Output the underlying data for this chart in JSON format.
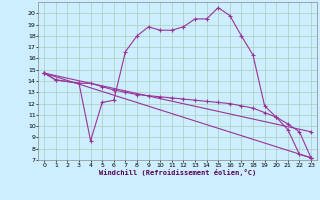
{
  "xlabel": "Windchill (Refroidissement éolien,°C)",
  "bg_color": "#cceeff",
  "grid_color": "#aaccbb",
  "line_color": "#993399",
  "xlim": [
    -0.5,
    23.5
  ],
  "ylim": [
    7,
    21
  ],
  "yticks": [
    7,
    8,
    9,
    10,
    11,
    12,
    13,
    14,
    15,
    16,
    17,
    18,
    19,
    20
  ],
  "xticks": [
    0,
    1,
    2,
    3,
    4,
    5,
    6,
    7,
    8,
    9,
    10,
    11,
    12,
    13,
    14,
    15,
    16,
    17,
    18,
    19,
    20,
    21,
    22,
    23
  ],
  "series1_x": [
    0,
    1,
    3,
    4,
    5,
    6,
    7,
    8,
    9,
    10,
    11,
    12,
    13,
    14,
    15,
    16,
    17,
    18,
    19,
    20,
    21,
    22,
    23
  ],
  "series1_y": [
    14.7,
    14.1,
    13.8,
    8.7,
    12.1,
    12.3,
    16.6,
    18.0,
    18.8,
    18.5,
    18.5,
    18.8,
    19.5,
    19.5,
    20.5,
    19.8,
    18.0,
    16.3,
    11.8,
    10.8,
    9.7,
    7.5,
    7.2
  ],
  "series2_x": [
    0,
    1,
    3,
    4,
    5,
    6,
    7,
    8,
    9,
    10,
    11,
    12,
    13,
    14,
    15,
    16,
    17,
    18,
    19,
    20,
    21,
    22,
    23
  ],
  "series2_y": [
    14.7,
    14.1,
    13.8,
    13.8,
    13.5,
    13.2,
    13.0,
    12.8,
    12.7,
    12.6,
    12.5,
    12.4,
    12.3,
    12.2,
    12.1,
    12.0,
    11.8,
    11.6,
    11.2,
    10.8,
    10.2,
    9.5,
    7.2
  ],
  "series3_x": [
    0,
    23
  ],
  "series3_y": [
    14.7,
    7.2
  ],
  "series4_x": [
    0,
    23
  ],
  "series4_y": [
    14.7,
    9.5
  ]
}
